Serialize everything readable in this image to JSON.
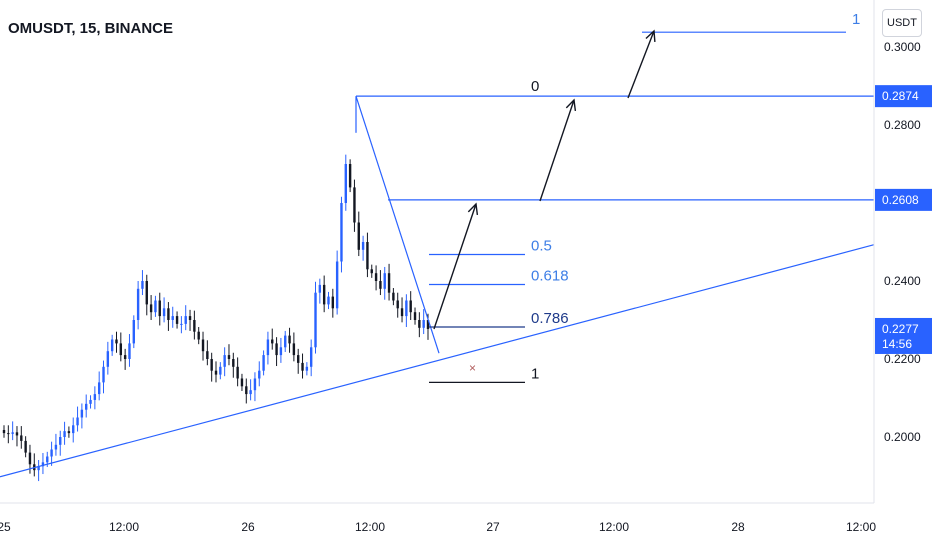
{
  "header": {
    "symbol_title": "OMUSDT, 15, BINANCE",
    "currency": "USDT"
  },
  "colors": {
    "line": "#2962ff",
    "fib_blue": "#3d7ee6",
    "candle_up": "#2962ff",
    "candle_down": "#131722",
    "price_tag": "#2962ff",
    "marker": "#b05b5b"
  },
  "chart_data": {
    "type": "candlestick",
    "y_axis": {
      "ticks": [
        "0.3000",
        "0.2800",
        "0.2600",
        "0.2400",
        "0.2200",
        "0.2000"
      ],
      "tick_values": [
        0.3,
        0.28,
        0.26,
        0.24,
        0.22,
        0.2
      ],
      "ylim": [
        0.1865,
        0.3115
      ]
    },
    "x_axis": {
      "ticks": [
        "25",
        "12:00",
        "26",
        "12:00",
        "27",
        "12:00",
        "28",
        "12:00"
      ]
    },
    "price_tags": [
      {
        "value": "0.2874"
      },
      {
        "value": "0.2608"
      },
      {
        "value": "0.2277",
        "sub": "14:56"
      }
    ],
    "horizontal_levels": [
      {
        "price": 0.2874,
        "label": "0"
      },
      {
        "price": 0.2608
      },
      {
        "price": 0.3038,
        "label": "1"
      }
    ],
    "fib_levels": [
      {
        "label": "0.5",
        "price": 0.2468
      },
      {
        "label": "0.618",
        "price": 0.2391
      },
      {
        "label": "0.786",
        "price": 0.2282
      },
      {
        "label": "1",
        "price": 0.214
      }
    ],
    "trend_line": {
      "from": 0.1898,
      "to": 0.2493
    },
    "close": 0.2277,
    "candles": [
      0.201,
      0.2008,
      0.2012,
      0.2004,
      0.199,
      0.196,
      0.193,
      0.1915,
      0.1925,
      0.1935,
      0.195,
      0.1968,
      0.198,
      0.2,
      0.2015,
      0.201,
      0.203,
      0.205,
      0.207,
      0.2085,
      0.2095,
      0.211,
      0.214,
      0.218,
      0.222,
      0.225,
      0.224,
      0.221,
      0.22,
      0.224,
      0.23,
      0.238,
      0.24,
      0.234,
      0.232,
      0.235,
      0.231,
      0.233,
      0.23,
      0.231,
      0.229,
      0.229,
      0.231,
      0.23,
      0.227,
      0.225,
      0.222,
      0.22,
      0.217,
      0.216,
      0.218,
      0.221,
      0.22,
      0.218,
      0.215,
      0.213,
      0.211,
      0.212,
      0.215,
      0.217,
      0.221,
      0.225,
      0.224,
      0.221,
      0.223,
      0.226,
      0.224,
      0.221,
      0.219,
      0.217,
      0.218,
      0.223,
      0.237,
      0.239,
      0.234,
      0.236,
      0.233,
      0.245,
      0.26,
      0.27,
      0.264,
      0.255,
      0.248,
      0.25,
      0.243,
      0.242,
      0.24,
      0.238,
      0.242,
      0.237,
      0.235,
      0.233,
      0.231,
      0.235,
      0.232,
      0.23,
      0.228,
      0.23,
      0.2277
    ]
  }
}
